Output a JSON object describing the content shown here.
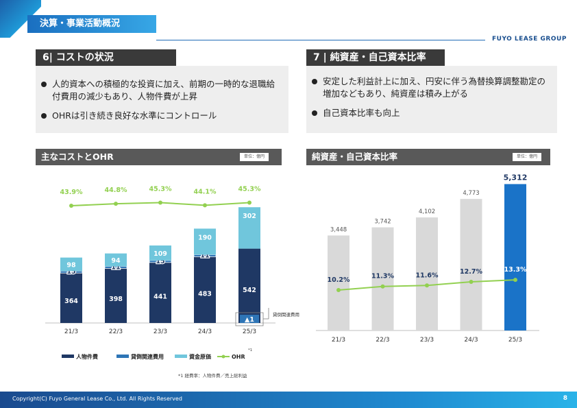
{
  "header": {
    "title": "決算・事業活動概況",
    "brand": "FUYO LEASE GROUP"
  },
  "section_left": {
    "heading": "6| コストの状況",
    "bullets": [
      "人的資本への積極的な投資に加え、前期の一時的な退職給付費用の減少もあり、人物件費が上昇",
      "OHRは引き続き良好な水準にコントロール"
    ]
  },
  "section_right": {
    "heading": "7 | 純資産・自己資本比率",
    "bullets": [
      "安定した利益計上に加え、円安に伴う為替換算調整勘定の増加などもあり、純資産は積み上がる",
      "自己資本比率も向上"
    ]
  },
  "chart_left": {
    "heading": "主なコストとOHR",
    "unit": "単位：億円",
    "callout": "貸倒関連費用",
    "legend_superscript": "*1",
    "footnote": "*1 経費率：人物件費／売上総利益"
  },
  "chart_right": {
    "heading": "純資産・自己資本比率",
    "unit": "単位：億円"
  },
  "chart_data": [
    {
      "type": "bar",
      "categories": [
        "21/3",
        "22/3",
        "23/3",
        "24/3",
        "25/3"
      ],
      "series": [
        {
          "name": "人物件費",
          "values": [
            364,
            398,
            441,
            483,
            542
          ],
          "labels": [
            "364",
            "398",
            "441",
            "483",
            "542"
          ],
          "color": "#1f3864"
        },
        {
          "name": "貸倒関連費用",
          "values": [
            15,
            11,
            15,
            11,
            -1
          ],
          "labels": [
            "15",
            "11",
            "15",
            "11",
            "▲1"
          ],
          "color": "#2e75b6"
        },
        {
          "name": "資金原価",
          "values": [
            98,
            94,
            109,
            190,
            302
          ],
          "labels": [
            "98",
            "94",
            "109",
            "190",
            "302"
          ],
          "color": "#70c6dc"
        },
        {
          "name": "OHR",
          "values": [
            43.9,
            44.8,
            45.3,
            44.1,
            45.3
          ],
          "labels": [
            "43.9%",
            "44.8%",
            "45.3%",
            "44.1%",
            "45.3%"
          ],
          "color": "#92d050",
          "type": "line"
        }
      ]
    },
    {
      "type": "bar",
      "categories": [
        "21/3",
        "22/3",
        "23/3",
        "24/3",
        "25/3"
      ],
      "series": [
        {
          "name": "純資産",
          "values": [
            3448,
            3742,
            4102,
            4773,
            5312
          ],
          "labels": [
            "3,448",
            "3,742",
            "4,102",
            "4,773",
            "5,312"
          ],
          "color": "#d9d9d9",
          "highlight_color": "#1a73c8"
        },
        {
          "name": "自己資本比率",
          "values": [
            10.2,
            11.3,
            11.6,
            12.7,
            13.3
          ],
          "labels": [
            "10.2%",
            "11.3%",
            "11.6%",
            "12.7%",
            "13.3%"
          ],
          "color": "#92d050",
          "type": "line"
        }
      ]
    }
  ],
  "footer": {
    "copyright": "Copyright(C) Fuyo General Lease Co., Ltd. All Rights Reserved",
    "page": "8"
  }
}
